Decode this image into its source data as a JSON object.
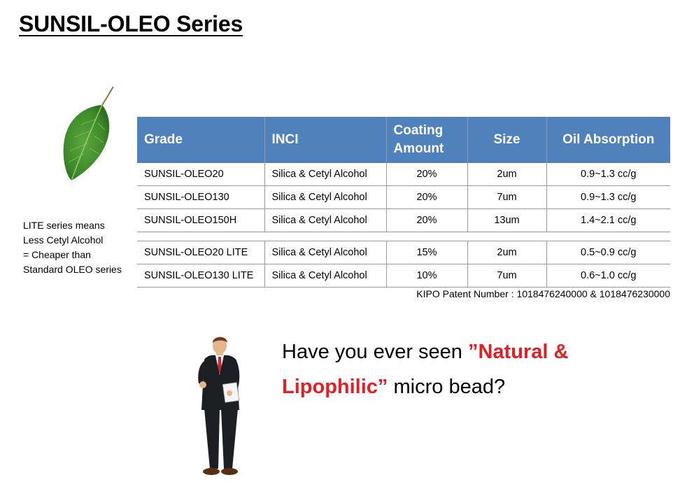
{
  "slide": {
    "title": "SUNSIL-OLEO Series"
  },
  "side_note": {
    "lines": [
      "LITE series means",
      "Less Cetyl Alcohol",
      "= Cheaper than",
      "Standard OLEO series"
    ]
  },
  "table": {
    "headers": {
      "grade": "Grade",
      "inci": "INCI",
      "coating_line1": "Coating",
      "coating_line2": "Amount",
      "size": "Size",
      "oil": "Oil Absorption"
    },
    "standard_rows": [
      {
        "grade": "SUNSIL-OLEO20",
        "inci": "Silica & Cetyl Alcohol",
        "coating": "20%",
        "size": "2um",
        "oil": "0.9~1.3 cc/g"
      },
      {
        "grade": "SUNSIL-OLEO130",
        "inci": "Silica & Cetyl Alcohol",
        "coating": "20%",
        "size": "7um",
        "oil": "0.9~1.3 cc/g"
      },
      {
        "grade": "SUNSIL-OLEO150H",
        "inci": "Silica & Cetyl Alcohol",
        "coating": "20%",
        "size": "13um",
        "oil": "1.4~2.1 cc/g"
      }
    ],
    "lite_rows": [
      {
        "grade": "SUNSIL-OLEO20 LITE",
        "inci": "Silica & Cetyl Alcohol",
        "coating": "15%",
        "size": "2um",
        "oil": "0.5~0.9 cc/g"
      },
      {
        "grade": "SUNSIL-OLEO130 LITE",
        "inci": "Silica & Cetyl Alcohol",
        "coating": "10%",
        "size": "7um",
        "oil": "0.6~1.0 cc/g"
      }
    ],
    "header_color": "#4f81bd"
  },
  "patent": "KIPO Patent Number : 1018476240000 & 1018476230000",
  "question": {
    "before": "Have you ever seen ",
    "highlight_1": "”Natural &",
    "highlight_2": "Lipophilic”",
    "after": " micro bead?",
    "highlight_color": "#e31e24"
  },
  "images": {
    "leaf": "leaf-icon",
    "presenter": "businessman-icon"
  }
}
